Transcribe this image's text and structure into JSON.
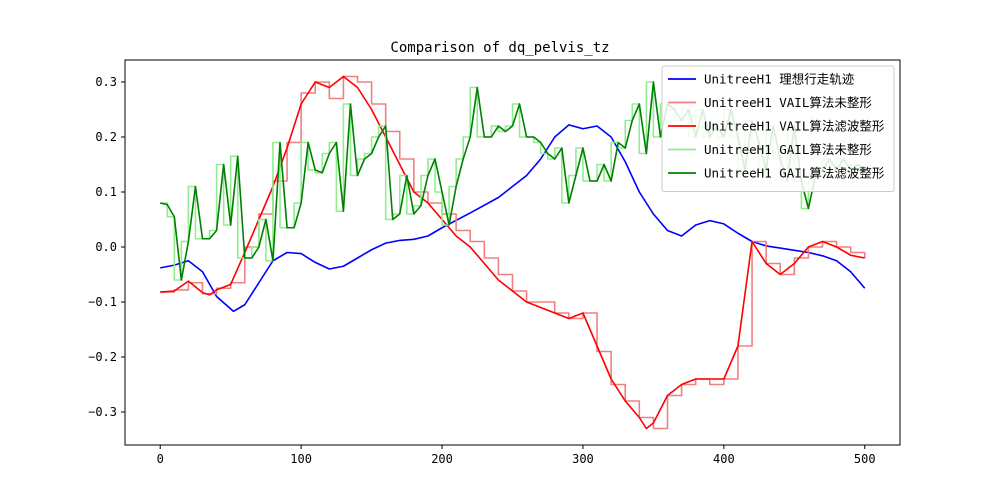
{
  "chart_data": {
    "type": "line",
    "title": "Comparison of dq_pelvis_tz",
    "xlabel": "",
    "ylabel": "",
    "xlim": [
      -25,
      525
    ],
    "ylim": [
      -0.36,
      0.34
    ],
    "xticks": [
      0,
      100,
      200,
      300,
      400,
      500
    ],
    "yticks": [
      -0.3,
      -0.2,
      -0.1,
      0.0,
      0.1,
      0.2,
      0.3
    ],
    "xtick_labels": [
      "0",
      "100",
      "200",
      "300",
      "400",
      "500"
    ],
    "ytick_labels": [
      "−0.3",
      "−0.2",
      "−0.1",
      "0.0",
      "0.1",
      "0.2",
      "0.3"
    ],
    "legend_position": "top-right",
    "series": [
      {
        "name": "UnitreeH1 理想行走轨迹",
        "color": "#0000ff",
        "style": "line",
        "x": [
          0,
          10,
          20,
          30,
          40,
          52,
          60,
          70,
          80,
          90,
          100,
          110,
          120,
          130,
          140,
          150,
          160,
          170,
          180,
          190,
          200,
          220,
          240,
          260,
          270,
          280,
          290,
          300,
          310,
          320,
          330,
          340,
          350,
          360,
          370,
          380,
          390,
          400,
          410,
          420,
          430,
          440,
          450,
          460,
          470,
          480,
          490,
          500
        ],
        "values": [
          -0.038,
          -0.033,
          -0.025,
          -0.045,
          -0.09,
          -0.117,
          -0.105,
          -0.065,
          -0.025,
          -0.01,
          -0.012,
          -0.028,
          -0.04,
          -0.035,
          -0.02,
          -0.005,
          0.007,
          0.012,
          0.014,
          0.02,
          0.035,
          0.062,
          0.09,
          0.13,
          0.16,
          0.2,
          0.222,
          0.215,
          0.22,
          0.2,
          0.155,
          0.1,
          0.06,
          0.03,
          0.02,
          0.04,
          0.048,
          0.042,
          0.025,
          0.01,
          0.002,
          -0.002,
          -0.006,
          -0.01,
          -0.016,
          -0.025,
          -0.045,
          -0.075
        ]
      },
      {
        "name": "UnitreeH1 VAIL算法未整形",
        "color": "#f08080",
        "style": "step",
        "x": [
          0,
          10,
          20,
          30,
          40,
          50,
          60,
          70,
          80,
          90,
          100,
          110,
          120,
          130,
          140,
          150,
          160,
          170,
          180,
          190,
          200,
          210,
          220,
          230,
          240,
          250,
          260,
          270,
          280,
          290,
          300,
          310,
          320,
          330,
          340,
          350,
          360,
          370,
          380,
          390,
          400,
          410,
          420,
          430,
          440,
          450,
          460,
          470,
          480,
          490,
          500
        ],
        "values": [
          -0.082,
          -0.078,
          -0.065,
          -0.085,
          -0.075,
          -0.065,
          0.0,
          0.06,
          0.12,
          0.19,
          0.28,
          0.3,
          0.27,
          0.31,
          0.3,
          0.26,
          0.21,
          0.16,
          0.1,
          0.08,
          0.06,
          0.03,
          0.01,
          -0.02,
          -0.05,
          -0.08,
          -0.1,
          -0.1,
          -0.12,
          -0.13,
          -0.12,
          -0.19,
          -0.25,
          -0.28,
          -0.31,
          -0.33,
          -0.27,
          -0.25,
          -0.24,
          -0.25,
          -0.24,
          -0.18,
          0.01,
          -0.03,
          -0.05,
          -0.02,
          0.0,
          0.01,
          0.0,
          -0.01,
          -0.02
        ]
      },
      {
        "name": "UnitreeH1 VAIL算法滤波整形",
        "color": "#ff0000",
        "style": "line",
        "x": [
          0,
          10,
          20,
          30,
          35,
          40,
          50,
          60,
          70,
          80,
          90,
          100,
          110,
          120,
          130,
          140,
          150,
          160,
          170,
          180,
          190,
          200,
          210,
          220,
          230,
          240,
          250,
          260,
          270,
          280,
          290,
          300,
          310,
          320,
          330,
          340,
          345,
          350,
          360,
          370,
          380,
          390,
          400,
          410,
          420,
          430,
          440,
          450,
          460,
          470,
          480,
          490,
          500
        ],
        "values": [
          -0.082,
          -0.08,
          -0.062,
          -0.083,
          -0.087,
          -0.078,
          -0.068,
          -0.01,
          0.05,
          0.11,
          0.18,
          0.26,
          0.3,
          0.29,
          0.31,
          0.29,
          0.25,
          0.2,
          0.15,
          0.1,
          0.08,
          0.05,
          0.02,
          0.0,
          -0.03,
          -0.06,
          -0.08,
          -0.1,
          -0.11,
          -0.12,
          -0.13,
          -0.12,
          -0.18,
          -0.24,
          -0.28,
          -0.31,
          -0.33,
          -0.32,
          -0.27,
          -0.25,
          -0.24,
          -0.24,
          -0.24,
          -0.18,
          0.01,
          -0.03,
          -0.05,
          -0.03,
          0.0,
          0.01,
          0.0,
          -0.015,
          -0.02
        ]
      },
      {
        "name": "UnitreeH1 GAIL算法未整形",
        "color": "#90ee90",
        "style": "step",
        "x": [
          0,
          5,
          10,
          15,
          20,
          25,
          30,
          35,
          40,
          45,
          50,
          55,
          60,
          65,
          70,
          75,
          80,
          85,
          90,
          95,
          100,
          105,
          110,
          115,
          120,
          125,
          130,
          135,
          140,
          145,
          150,
          155,
          160,
          165,
          170,
          175,
          180,
          185,
          190,
          195,
          200,
          205,
          210,
          215,
          220,
          225,
          230,
          235,
          240,
          245,
          250,
          255,
          260,
          265,
          270,
          275,
          280,
          285,
          290,
          295,
          300,
          305,
          310,
          315,
          320,
          325,
          330,
          335,
          340,
          345,
          350,
          355,
          360,
          365,
          370,
          375,
          380,
          385,
          390,
          395,
          400,
          405,
          410,
          415,
          420,
          425,
          430,
          435,
          440,
          445,
          450,
          455,
          460,
          465,
          470,
          475,
          480,
          485,
          490,
          495,
          500
        ],
        "values": [
          0.08,
          0.055,
          -0.06,
          0.01,
          0.11,
          0.015,
          0.015,
          0.03,
          0.15,
          0.04,
          0.165,
          -0.02,
          -0.02,
          0.0,
          0.05,
          -0.025,
          0.19,
          0.035,
          0.035,
          0.08,
          0.19,
          0.14,
          0.135,
          0.17,
          0.19,
          0.065,
          0.26,
          0.13,
          0.16,
          0.17,
          0.2,
          0.22,
          0.05,
          0.06,
          0.13,
          0.06,
          0.075,
          0.13,
          0.16,
          0.1,
          0.04,
          0.11,
          0.16,
          0.2,
          0.29,
          0.2,
          0.2,
          0.22,
          0.21,
          0.22,
          0.26,
          0.2,
          0.2,
          0.19,
          0.17,
          0.16,
          0.18,
          0.08,
          0.13,
          0.18,
          0.12,
          0.12,
          0.15,
          0.12,
          0.19,
          0.18,
          0.23,
          0.26,
          0.17,
          0.3,
          0.2,
          0.26,
          0.25,
          0.23,
          0.25,
          0.2,
          0.25,
          0.2,
          0.22,
          0.2,
          0.25,
          0.2,
          0.14,
          0.23,
          0.19,
          0.14,
          0.22,
          0.16,
          0.12,
          0.22,
          0.12,
          0.07,
          0.13,
          0.14,
          0.16,
          0.14,
          0.16,
          0.14,
          0.15,
          0.14,
          0.15
        ]
      },
      {
        "name": "UnitreeH1 GAIL算法滤波整形",
        "color": "#008000",
        "style": "line",
        "x": [
          0,
          5,
          10,
          15,
          20,
          25,
          30,
          35,
          40,
          45,
          50,
          55,
          60,
          65,
          70,
          75,
          80,
          85,
          90,
          95,
          100,
          105,
          110,
          115,
          120,
          125,
          130,
          135,
          140,
          145,
          150,
          155,
          160,
          165,
          170,
          175,
          180,
          185,
          190,
          195,
          200,
          205,
          210,
          215,
          220,
          225,
          230,
          235,
          240,
          245,
          250,
          255,
          260,
          265,
          270,
          275,
          280,
          285,
          290,
          295,
          300,
          305,
          310,
          315,
          320,
          325,
          330,
          335,
          340,
          345,
          350,
          355,
          360,
          365,
          370,
          375,
          380,
          385,
          390,
          395,
          400,
          405,
          410,
          415,
          420,
          425,
          430,
          435,
          440,
          445,
          450,
          455,
          460,
          465,
          470,
          475,
          480,
          485,
          490,
          495,
          500
        ],
        "values": [
          0.08,
          0.077,
          0.055,
          -0.06,
          0.01,
          0.11,
          0.015,
          0.015,
          0.03,
          0.15,
          0.04,
          0.165,
          -0.02,
          -0.02,
          0.0,
          0.05,
          -0.025,
          0.19,
          0.035,
          0.035,
          0.08,
          0.19,
          0.14,
          0.135,
          0.17,
          0.19,
          0.065,
          0.26,
          0.13,
          0.16,
          0.17,
          0.2,
          0.22,
          0.05,
          0.06,
          0.13,
          0.06,
          0.075,
          0.13,
          0.16,
          0.1,
          0.04,
          0.11,
          0.16,
          0.2,
          0.29,
          0.2,
          0.2,
          0.22,
          0.21,
          0.22,
          0.26,
          0.2,
          0.2,
          0.19,
          0.17,
          0.16,
          0.18,
          0.08,
          0.13,
          0.18,
          0.12,
          0.12,
          0.15,
          0.12,
          0.19,
          0.18,
          0.23,
          0.26,
          0.17,
          0.3,
          0.2,
          0.26,
          0.25,
          0.23,
          0.25,
          0.2,
          0.25,
          0.2,
          0.22,
          0.2,
          0.25,
          0.2,
          0.14,
          0.23,
          0.19,
          0.14,
          0.22,
          0.16,
          0.12,
          0.22,
          0.12,
          0.07,
          0.13,
          0.14,
          0.16,
          0.14,
          0.16,
          0.14,
          0.15,
          0.14
        ]
      }
    ]
  }
}
